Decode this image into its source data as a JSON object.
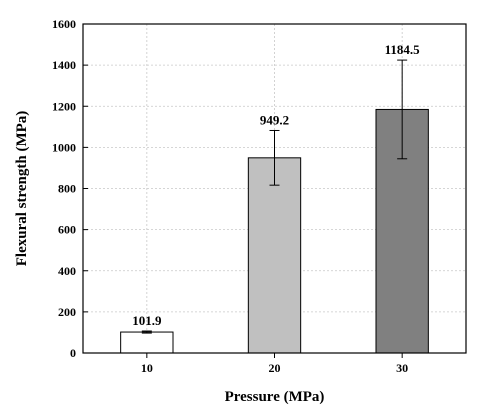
{
  "chart_data": {
    "type": "bar",
    "categories": [
      "10",
      "20",
      "30"
    ],
    "values": [
      101.9,
      949.2,
      1184.5
    ],
    "errors": [
      5,
      133,
      240
    ],
    "data_labels": [
      "101.9",
      "949.2",
      "1184.5"
    ],
    "bar_colors": [
      "#ffffff",
      "#c0c0c0",
      "#808080"
    ],
    "xlabel": "Pressure (MPa)",
    "ylabel": "Flexural strength (MPa)",
    "ylim": [
      0,
      1600
    ],
    "yticks": [
      "0",
      "200",
      "400",
      "600",
      "800",
      "1000",
      "1200",
      "1400",
      "1600"
    ],
    "grid": true
  }
}
